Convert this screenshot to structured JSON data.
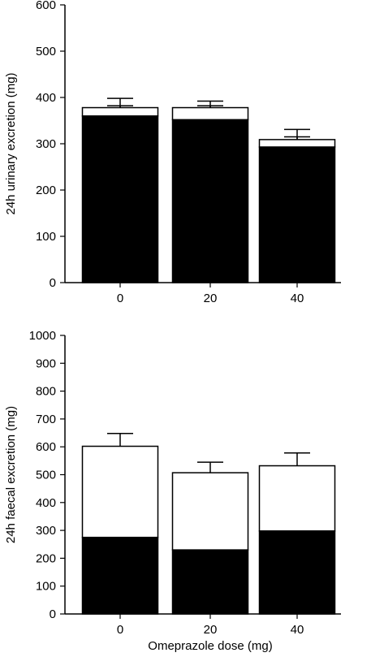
{
  "chart_data": [
    {
      "type": "bar",
      "stacked": true,
      "categories": [
        "0",
        "20",
        "40"
      ],
      "ylabel": "24h urinary excretion (mg)",
      "xlabel": "",
      "ylim": [
        0,
        600
      ],
      "yticks": [
        "0",
        "100",
        "200",
        "300",
        "400",
        "500",
        "600"
      ],
      "grid": false,
      "series": [
        {
          "fill": "#000000",
          "values": [
            360,
            352,
            293
          ],
          "error": [
            22,
            30,
            22
          ]
        },
        {
          "fill": "#ffffff",
          "values": [
            18,
            26,
            16
          ],
          "error": [
            20,
            14,
            22
          ]
        }
      ],
      "totals": [
        378,
        378,
        309
      ]
    },
    {
      "type": "bar",
      "stacked": true,
      "categories": [
        "0",
        "20",
        "40"
      ],
      "ylabel": "24h faecal excretion (mg)",
      "xlabel": "Omeprazole dose (mg)",
      "ylim": [
        0,
        1000
      ],
      "yticks": [
        "0",
        "100",
        "200",
        "300",
        "400",
        "500",
        "600",
        "700",
        "800",
        "900",
        "1000"
      ],
      "grid": false,
      "series": [
        {
          "fill": "#000000",
          "values": [
            275,
            230,
            298
          ],
          "error": [
            40,
            38,
            42
          ]
        },
        {
          "fill": "#ffffff",
          "values": [
            327,
            277,
            234
          ],
          "error": [
            46,
            38,
            46
          ]
        }
      ],
      "totals": [
        602,
        507,
        532
      ]
    }
  ]
}
